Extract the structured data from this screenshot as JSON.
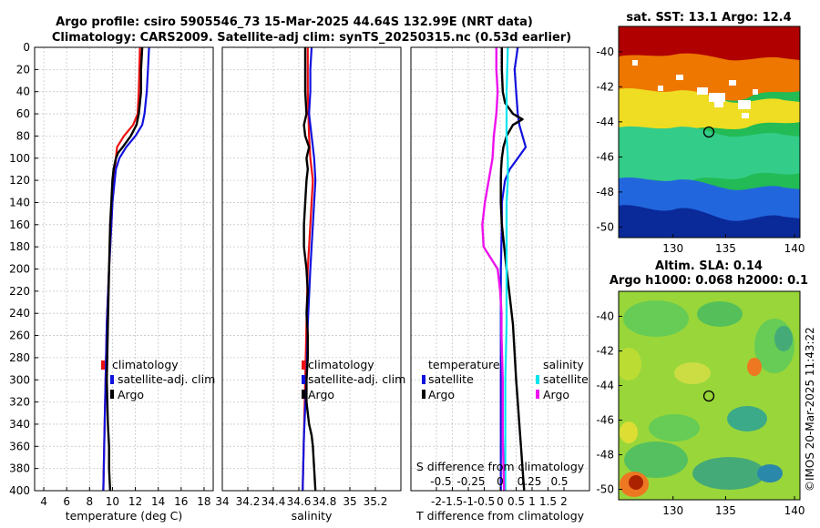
{
  "chart_data": {
    "type": "line",
    "title_line1": "Argo profile: csiro 5905546_73 15-Mar-2025 44.64S 132.99E (NRT data)",
    "title_line2": "Climatology: CARS2009. Satellite-adj clim: synTS_20250315.nc (0.53d earlier)",
    "depth_ylim": [
      400,
      0
    ],
    "depth_ticks": [
      "0",
      "20",
      "40",
      "60",
      "80",
      "100",
      "120",
      "140",
      "160",
      "180",
      "200",
      "220",
      "240",
      "260",
      "280",
      "300",
      "320",
      "340",
      "360",
      "380",
      "400"
    ],
    "depth_values": [
      0,
      20,
      40,
      60,
      80,
      100,
      120,
      140,
      160,
      180,
      200,
      220,
      240,
      260,
      280,
      300,
      320,
      340,
      360,
      380,
      400
    ],
    "panels": {
      "temperature": {
        "xlabel": "temperature (deg C)",
        "xlim": [
          3.2,
          18.8
        ],
        "xticks": [
          "4",
          "6",
          "8",
          "10",
          "12",
          "14",
          "16",
          "18"
        ],
        "xtick_values": [
          4,
          6,
          8,
          10,
          12,
          14,
          16,
          18
        ],
        "series": [
          {
            "name": "climatology",
            "color": "#ee1111",
            "depth": [
              0,
              40,
              60,
              70,
              80,
              90,
              100,
              110,
              120,
              140,
              160,
              200,
              250,
              300,
              350,
              400
            ],
            "values": [
              12.4,
              12.3,
              12.2,
              11.8,
              11.0,
              10.4,
              10.3,
              10.2,
              10.1,
              10.0,
              9.9,
              9.7,
              9.5,
              9.4,
              9.3,
              9.2
            ]
          },
          {
            "name": "satellite-adj. clim",
            "color": "#1111dd",
            "depth": [
              0,
              20,
              40,
              60,
              70,
              80,
              90,
              100,
              110,
              120,
              140,
              160,
              200,
              250,
              300,
              350,
              400
            ],
            "values": [
              13.2,
              13.1,
              13.0,
              12.8,
              12.6,
              12.0,
              11.2,
              10.6,
              10.3,
              10.2,
              10.0,
              9.9,
              9.7,
              9.5,
              9.4,
              9.3,
              9.2
            ]
          },
          {
            "name": "Argo",
            "color": "#000000",
            "depth": [
              0,
              20,
              40,
              50,
              60,
              70,
              80,
              90,
              95,
              100,
              110,
              120,
              140,
              160,
              200,
              250,
              300,
              320,
              340,
              360,
              380,
              400
            ],
            "values": [
              12.6,
              12.5,
              12.5,
              12.4,
              12.3,
              12.1,
              11.6,
              10.9,
              10.5,
              10.3,
              10.1,
              10.0,
              9.9,
              9.8,
              9.7,
              9.6,
              9.5,
              9.55,
              9.6,
              9.7,
              9.7,
              9.8
            ]
          }
        ]
      },
      "salinity": {
        "xlabel": "salinity",
        "xlim": [
          34.0,
          35.4
        ],
        "xticks": [
          "34",
          "34.2",
          "34.4",
          "34.6",
          "34.8",
          "35",
          "35.2"
        ],
        "xtick_values": [
          34.0,
          34.2,
          34.4,
          34.6,
          34.8,
          35.0,
          35.2
        ],
        "series": [
          {
            "name": "climatology",
            "color": "#ee1111",
            "depth": [
              0,
              40,
              80,
              100,
              120,
              140,
              160,
              200,
              250,
              300,
              350,
              400
            ],
            "values": [
              34.67,
              34.67,
              34.68,
              34.69,
              34.71,
              34.7,
              34.69,
              34.67,
              34.66,
              34.65,
              34.64,
              34.63
            ]
          },
          {
            "name": "satellite-adj. clim",
            "color": "#1111dd",
            "depth": [
              0,
              20,
              40,
              60,
              80,
              100,
              120,
              140,
              160,
              200,
              250,
              300,
              350,
              400
            ],
            "values": [
              34.7,
              34.69,
              34.69,
              34.68,
              34.7,
              34.72,
              34.73,
              34.72,
              34.71,
              34.69,
              34.67,
              34.66,
              34.64,
              34.63
            ]
          },
          {
            "name": "Argo",
            "color": "#000000",
            "depth": [
              0,
              20,
              40,
              60,
              70,
              80,
              90,
              100,
              110,
              120,
              140,
              160,
              180,
              200,
              220,
              240,
              260,
              280,
              300,
              320,
              340,
              350,
              360,
              380,
              400
            ],
            "values": [
              34.65,
              34.65,
              34.65,
              34.66,
              34.64,
              34.65,
              34.68,
              34.66,
              34.67,
              34.66,
              34.65,
              34.64,
              34.64,
              34.66,
              34.67,
              34.66,
              34.67,
              34.67,
              34.66,
              34.66,
              34.68,
              34.7,
              34.71,
              34.72,
              34.73
            ]
          }
        ]
      },
      "difference": {
        "xlabel": "T difference from climatology",
        "xlim": [
          -2.8,
          2.8
        ],
        "xticks": [
          "-2",
          "-1.5",
          "-1",
          "-0.5",
          "0",
          "0.5",
          "1",
          "1.5",
          "2"
        ],
        "xtick_values": [
          -2,
          -1.5,
          -1,
          -0.5,
          0,
          0.5,
          1,
          1.5,
          2
        ],
        "xlabel2": "S difference from climatology",
        "s_ticks": [
          "-0.5",
          "-0.25",
          "0",
          "0.25",
          "0.5"
        ],
        "s_tick_values": [
          -0.5,
          -0.25,
          0,
          0.25,
          0.5
        ],
        "legend_temperature_title": "temperature",
        "legend_salinity_title": "salinity",
        "series": [
          {
            "name": "satellite",
            "group": "temperature",
            "color": "#1111dd",
            "depth": [
              0,
              20,
              40,
              60,
              70,
              80,
              90,
              100,
              110,
              120,
              140,
              160,
              200,
              250,
              300,
              350,
              400
            ],
            "values": [
              0.55,
              0.45,
              0.5,
              0.55,
              0.6,
              0.7,
              0.8,
              0.55,
              0.3,
              0.15,
              0.05,
              0.05,
              0.02,
              0.02,
              0.02,
              0.02,
              0.02
            ]
          },
          {
            "name": "Argo",
            "group": "temperature",
            "color": "#000000",
            "depth": [
              0,
              20,
              40,
              50,
              60,
              65,
              70,
              80,
              90,
              100,
              110,
              120,
              140,
              160,
              200,
              250,
              300,
              320,
              340,
              360,
              380,
              400
            ],
            "values": [
              0.05,
              0.05,
              0.08,
              0.15,
              0.4,
              0.7,
              0.4,
              0.2,
              0.1,
              0.05,
              0.03,
              0.02,
              0.02,
              0.05,
              0.2,
              0.4,
              0.5,
              0.55,
              0.6,
              0.65,
              0.7,
              0.75
            ]
          },
          {
            "name": "satellite",
            "group": "salinity",
            "color": "#00e5ee",
            "depth": [
              0,
              40,
              80,
              100,
              120,
              140,
              160,
              200,
              250,
              300,
              350,
              400
            ],
            "values": [
              0.06,
              0.05,
              0.05,
              0.06,
              0.06,
              0.05,
              0.05,
              0.05,
              0.05,
              0.04,
              0.04,
              0.04
            ]
          },
          {
            "name": "Argo",
            "group": "salinity",
            "color": "#ee11ee",
            "depth": [
              0,
              20,
              40,
              60,
              80,
              100,
              120,
              140,
              160,
              180,
              200,
              220,
              240,
              260,
              300,
              350,
              400
            ],
            "values": [
              -0.03,
              -0.03,
              -0.02,
              -0.03,
              -0.05,
              -0.06,
              -0.09,
              -0.12,
              -0.14,
              -0.13,
              -0.02,
              0.0,
              0.01,
              0.01,
              0.02,
              0.02,
              0.03
            ]
          }
        ]
      }
    },
    "sst_map": {
      "title": "sat. SST: 13.1 Argo: 12.4",
      "lon_ticks": [
        "130",
        "135",
        "140"
      ],
      "lat_ticks": [
        "-40",
        "-42",
        "-44",
        "-46",
        "-48",
        "-50"
      ]
    },
    "sla_map": {
      "title_line1": "Altim. SLA: 0.14",
      "title_line2": "Argo h1000: 0.068 h2000: 0.1",
      "lon_ticks": [
        "130",
        "135",
        "140"
      ],
      "lat_ticks": [
        "-40",
        "-42",
        "-44",
        "-46",
        "-48",
        "-50"
      ]
    },
    "legend_labels": {
      "climatology": "climatology",
      "satellite_adj": "satellite-adj. clim",
      "argo": "Argo",
      "satellite": "satellite"
    },
    "credit": "©IMOS 20-Mar-2025 11:43:22"
  }
}
